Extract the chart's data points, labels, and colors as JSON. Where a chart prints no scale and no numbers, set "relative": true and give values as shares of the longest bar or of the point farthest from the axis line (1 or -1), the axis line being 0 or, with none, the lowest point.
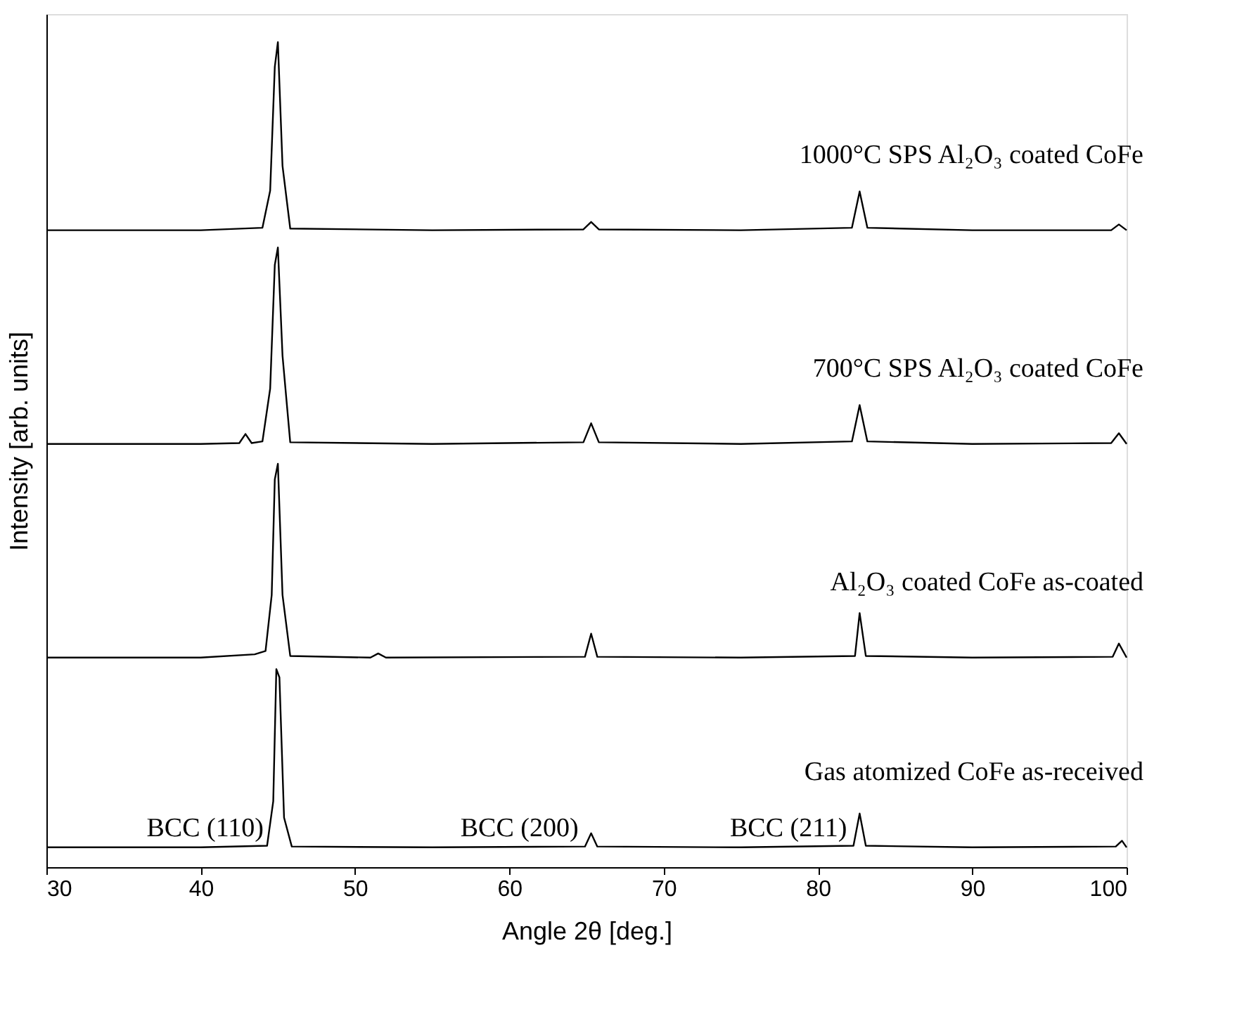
{
  "chart_data": {
    "type": "line",
    "relative": true,
    "xlabel": "Angle 2θ [deg.]",
    "ylabel": "Intensity [arb. units]",
    "xlim": [
      30,
      100
    ],
    "xticks": [
      30,
      40,
      50,
      60,
      70,
      80,
      90,
      100
    ],
    "grid": false,
    "marker": "none",
    "line_style": "solid",
    "series": [
      {
        "name": "1000°C SPS Al₂O₃ coated CoFe",
        "color": "#000000",
        "x": [
          30,
          40,
          44.0,
          44.5,
          44.8,
          45.0,
          45.3,
          45.8,
          55,
          64.8,
          65.3,
          65.8,
          75,
          82.2,
          82.7,
          83.2,
          90,
          99.0,
          99.5,
          100
        ],
        "values": [
          0.772,
          0.772,
          0.775,
          0.82,
          0.97,
          1.0,
          0.85,
          0.774,
          0.772,
          0.773,
          0.782,
          0.773,
          0.772,
          0.775,
          0.819,
          0.775,
          0.772,
          0.772,
          0.779,
          0.772
        ]
      },
      {
        "name": "700°C SPS Al₂O₃ coated CoFe",
        "color": "#000000",
        "x": [
          30,
          40,
          42.5,
          42.9,
          43.3,
          44.0,
          44.5,
          44.8,
          45.0,
          45.3,
          45.8,
          55,
          64.8,
          65.3,
          65.8,
          75,
          82.2,
          82.7,
          83.2,
          90,
          99.0,
          99.5,
          100
        ],
        "values": [
          0.513,
          0.513,
          0.514,
          0.525,
          0.514,
          0.516,
          0.58,
          0.73,
          0.751,
          0.62,
          0.515,
          0.513,
          0.515,
          0.538,
          0.515,
          0.513,
          0.516,
          0.56,
          0.516,
          0.513,
          0.514,
          0.526,
          0.513
        ]
      },
      {
        "name": "Al₂O₃ coated CoFe as-coated",
        "color": "#000000",
        "x": [
          30,
          40,
          43.5,
          44.2,
          44.6,
          44.8,
          45.0,
          45.3,
          45.8,
          51.0,
          51.5,
          52.0,
          64.9,
          65.3,
          65.7,
          75,
          82.4,
          82.7,
          83.1,
          90,
          99.1,
          99.5,
          100
        ],
        "values": [
          0.254,
          0.254,
          0.258,
          0.262,
          0.33,
          0.47,
          0.489,
          0.33,
          0.256,
          0.254,
          0.259,
          0.254,
          0.255,
          0.283,
          0.255,
          0.254,
          0.256,
          0.308,
          0.256,
          0.254,
          0.255,
          0.271,
          0.254
        ]
      },
      {
        "name": "Gas atomized CoFe as-received",
        "color": "#000000",
        "x": [
          30,
          40,
          44.3,
          44.7,
          44.9,
          45.1,
          45.4,
          45.9,
          55,
          64.9,
          65.3,
          65.7,
          75,
          82.3,
          82.7,
          83.1,
          90,
          99.3,
          99.7,
          100
        ],
        "values": [
          0.024,
          0.024,
          0.026,
          0.08,
          0.24,
          0.23,
          0.06,
          0.025,
          0.024,
          0.025,
          0.041,
          0.025,
          0.024,
          0.026,
          0.065,
          0.026,
          0.024,
          0.025,
          0.032,
          0.024
        ]
      }
    ],
    "annotations": [
      "BCC (110)",
      "BCC (200)",
      "BCC (211)"
    ]
  }
}
